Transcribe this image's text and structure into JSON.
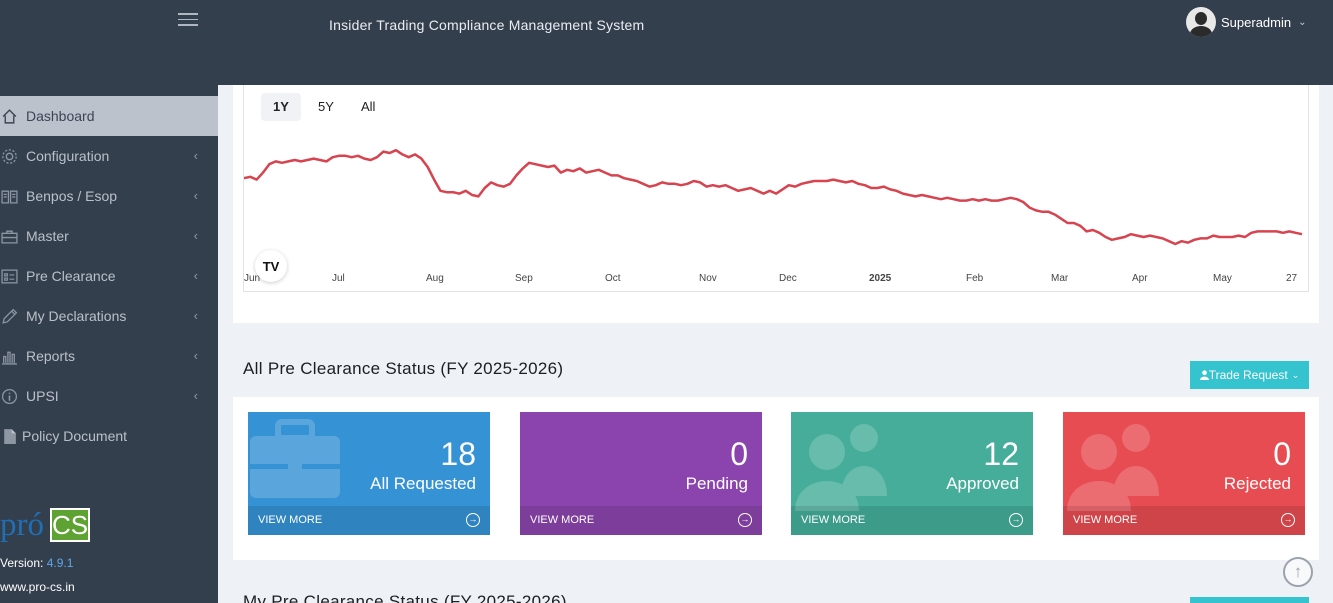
{
  "header": {
    "title": "Insider Trading Compliance Management System",
    "user_name": "Superadmin"
  },
  "sidebar": {
    "items": [
      {
        "label": "Dashboard",
        "icon": "home-icon",
        "active": true
      },
      {
        "label": "Configuration",
        "icon": "gear-icon"
      },
      {
        "label": "Benpos / Esop",
        "icon": "book-icon"
      },
      {
        "label": "Master",
        "icon": "briefcase-icon"
      },
      {
        "label": "Pre Clearance",
        "icon": "grid-icon"
      },
      {
        "label": "My Declarations",
        "icon": "pencil-icon"
      },
      {
        "label": "Reports",
        "icon": "bar-chart-icon"
      },
      {
        "label": "UPSI",
        "icon": "info-icon"
      },
      {
        "label": "Policy Document",
        "icon": "file-icon"
      }
    ],
    "logo": {
      "pro": "pró",
      "cs": "CS"
    },
    "version_label": "Version:",
    "version": "4.9.1",
    "website": "www.pro-cs.in"
  },
  "chart_data": {
    "type": "line",
    "range_buttons": [
      "1Y",
      "5Y",
      "All"
    ],
    "selected_range": "1Y",
    "x_ticks": [
      "Jun",
      "Jul",
      "Aug",
      "Sep",
      "Oct",
      "Nov",
      "Dec",
      "2025",
      "Feb",
      "Mar",
      "Apr",
      "May",
      "27"
    ],
    "line_color": "#d7434e",
    "y_axis_visible": false,
    "series": [
      {
        "values": [
          62,
          63,
          61,
          66,
          72,
          74,
          73,
          74,
          75,
          74,
          75,
          76,
          75,
          74,
          77,
          78,
          78,
          77,
          78,
          76,
          75,
          77,
          81,
          80,
          82,
          79,
          77,
          79,
          76,
          70,
          61,
          53,
          52,
          52,
          51,
          53,
          50,
          49,
          55,
          59,
          57,
          56,
          58,
          64,
          69,
          73,
          72,
          71,
          70,
          71,
          66,
          68,
          67,
          69,
          66,
          67,
          68,
          66,
          64,
          64,
          62,
          61,
          60,
          58,
          56,
          57,
          59,
          58,
          58,
          57,
          58,
          60,
          59,
          56,
          57,
          56,
          57,
          55,
          53,
          54,
          55,
          53,
          51,
          53,
          51,
          54,
          57,
          56,
          58,
          59,
          60,
          60,
          60,
          61,
          60,
          59,
          60,
          58,
          57,
          55,
          55,
          56,
          54,
          53,
          51,
          50,
          49,
          50,
          49,
          48,
          47,
          48,
          47,
          46,
          46,
          47,
          46,
          47,
          46,
          46,
          47,
          48,
          47,
          45,
          41,
          39,
          38,
          38,
          36,
          33,
          30,
          30,
          28,
          24,
          25,
          23,
          20,
          18,
          19,
          20,
          22,
          21,
          20,
          21,
          20,
          19,
          17,
          15,
          17,
          16,
          18,
          19,
          19,
          21,
          20,
          20,
          20,
          21,
          20,
          23,
          24,
          24,
          24,
          24,
          23,
          24,
          23,
          22
        ]
      }
    ]
  },
  "status_section": {
    "title": "All Pre Clearance Status (FY 2025-2026)",
    "trade_button": "Trade Request",
    "cards": [
      {
        "value": "18",
        "label": "All Requested",
        "link": "VIEW MORE",
        "color": "#3592d5",
        "icon": "briefcase-icon"
      },
      {
        "value": "0",
        "label": "Pending",
        "link": "VIEW MORE",
        "color": "#8b44ad",
        "icon": "none"
      },
      {
        "value": "12",
        "label": "Approved",
        "link": "VIEW MORE",
        "color": "#45ad9a",
        "icon": "users-icon"
      },
      {
        "value": "0",
        "label": "Rejected",
        "link": "VIEW MORE",
        "color": "#e74c52",
        "icon": "users-icon"
      }
    ]
  },
  "bottom_section": {
    "title": "My Pre Clearance Status (FY 2025-2026)"
  }
}
